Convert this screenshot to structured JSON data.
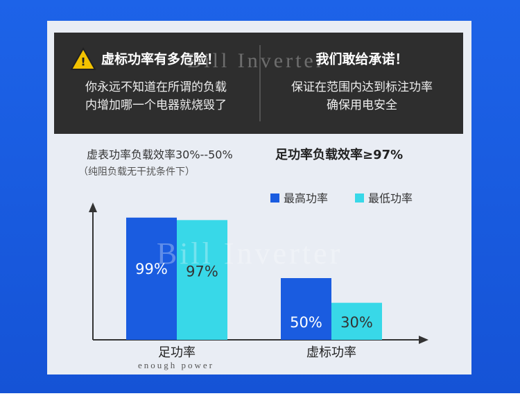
{
  "header": {
    "left_title": "虚标功率有多危险！",
    "left_lines": [
      "你永远不知道在所谓的负载",
      "内增加哪一个电器就烧毁了"
    ],
    "right_title": "我们敢给承诺！",
    "right_lines": [
      "保证在范围内达到标注功率",
      "确保用电安全"
    ]
  },
  "watermark": "Bill Inverter",
  "chart_data": {
    "type": "bar",
    "subtitle_left": "虚表功率负载效率30%--50%",
    "subtitle_right": "足功率负载效率≥97%",
    "note": "（纯阻负载无干扰条件下）",
    "categories": [
      "足功率",
      "虚标功率"
    ],
    "category_note": "enough power",
    "series": [
      {
        "name": "最高功率",
        "color": "#1a5ce0",
        "values": [
          99,
          50
        ],
        "value_labels": [
          "99%",
          "50%"
        ]
      },
      {
        "name": "最低功率",
        "color": "#38d8e8",
        "values": [
          97,
          30
        ],
        "value_labels": [
          "97%",
          "30%"
        ]
      }
    ],
    "ylim": [
      0,
      100
    ]
  }
}
